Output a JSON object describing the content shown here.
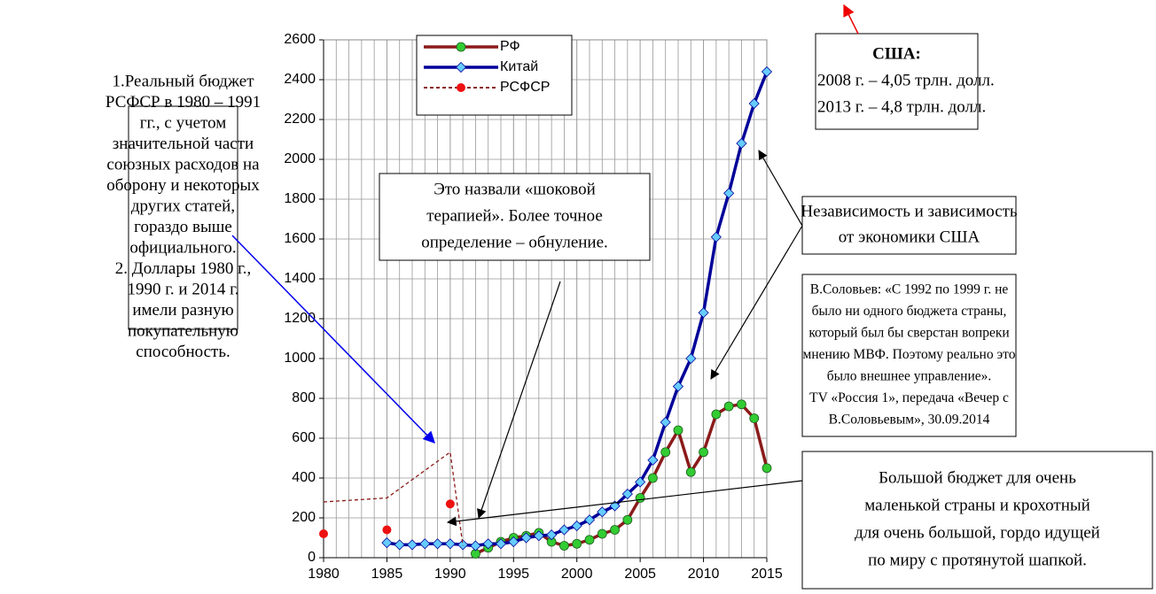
{
  "chart_data": {
    "type": "line",
    "xlim": [
      1980,
      2015
    ],
    "xticks": [
      1980,
      1985,
      1990,
      1995,
      2000,
      2005,
      2010,
      2015
    ],
    "ylim": [
      0,
      2600
    ],
    "yticks": [
      0,
      200,
      400,
      600,
      800,
      1000,
      1200,
      1400,
      1600,
      1800,
      2000,
      2200,
      2400,
      2600
    ],
    "grid": true,
    "legend": "top-left",
    "series": [
      {
        "name": "РФ",
        "color": "#8b1a1a",
        "marker": "circle",
        "marker_color": "#33cc33",
        "x": [
          1992,
          1993,
          1994,
          1995,
          1996,
          1997,
          1998,
          1999,
          2000,
          2001,
          2002,
          2003,
          2004,
          2005,
          2006,
          2007,
          2008,
          2009,
          2010,
          2011,
          2012,
          2013,
          2014,
          2015
        ],
        "values": [
          20,
          50,
          80,
          100,
          110,
          125,
          80,
          60,
          70,
          90,
          120,
          140,
          190,
          300,
          400,
          530,
          640,
          430,
          530,
          720,
          760,
          770,
          700,
          450
        ]
      },
      {
        "name": "Китай",
        "color": "#000099",
        "marker": "diamond",
        "marker_color": "#66ccff",
        "x": [
          1985,
          1986,
          1987,
          1988,
          1989,
          1990,
          1991,
          1992,
          1993,
          1994,
          1995,
          1996,
          1997,
          1998,
          1999,
          2000,
          2001,
          2002,
          2003,
          2004,
          2005,
          2006,
          2007,
          2008,
          2009,
          2010,
          2011,
          2012,
          2013,
          2014,
          2015
        ],
        "values": [
          75,
          65,
          65,
          70,
          70,
          70,
          65,
          60,
          70,
          70,
          80,
          100,
          110,
          115,
          140,
          160,
          190,
          230,
          260,
          320,
          380,
          490,
          680,
          860,
          1000,
          1230,
          1610,
          1830,
          2080,
          2280,
          2440
        ]
      },
      {
        "name": "РСФСР",
        "color": "#8b1a1a",
        "marker": "circle",
        "marker_color": "#ee1111",
        "dashed": true,
        "x": [
          1980,
          1985,
          1990
        ],
        "values": [
          120,
          140,
          270
        ],
        "line": {
          "x": [
            1980,
            1985,
            1990,
            1991
          ],
          "values": [
            280,
            300,
            530,
            60
          ]
        }
      }
    ]
  },
  "annotations": [
    {
      "lines": [
        "1.Реальный бюджет",
        "РСФСР в 1980 – 1991",
        "гг., с учетом",
        "значительной части",
        "союзных расходов на",
        "оборону и некоторых",
        "других статей,",
        "гораздо выше",
        "официального.",
        "2. Доллары 1980 г.,",
        "1990 г. и 2014 г.",
        "имели разную",
        "покупательную",
        "способность."
      ]
    },
    {
      "lines": [
        "Это назвали «шоковой",
        "терапией». Более точное",
        "определение – обнуление."
      ]
    },
    {
      "lines": [
        "США:",
        "2008 г. – 4,05 трлн. долл.",
        "2013 г. – 4,8 трлн. долл."
      ]
    },
    {
      "lines": [
        "Независимость и зависимость",
        "от экономики США"
      ]
    },
    {
      "lines": [
        "В.Соловьев: «С 1992 по 1999 г. не",
        "было ни одного бюджета страны,",
        "который был бы сверстан вопреки",
        "мнению МВФ. Поэтому реально это",
        "было внешнее управление».",
        "TV «Россия 1», передача «Вечер с",
        "В.Соловьевым», 30.09.2014"
      ]
    },
    {
      "lines": [
        "Большой бюджет для очень",
        "маленькой страны и крохотный",
        "для очень большой, гордо идущей",
        "по миру с протянутой шапкой."
      ]
    }
  ]
}
